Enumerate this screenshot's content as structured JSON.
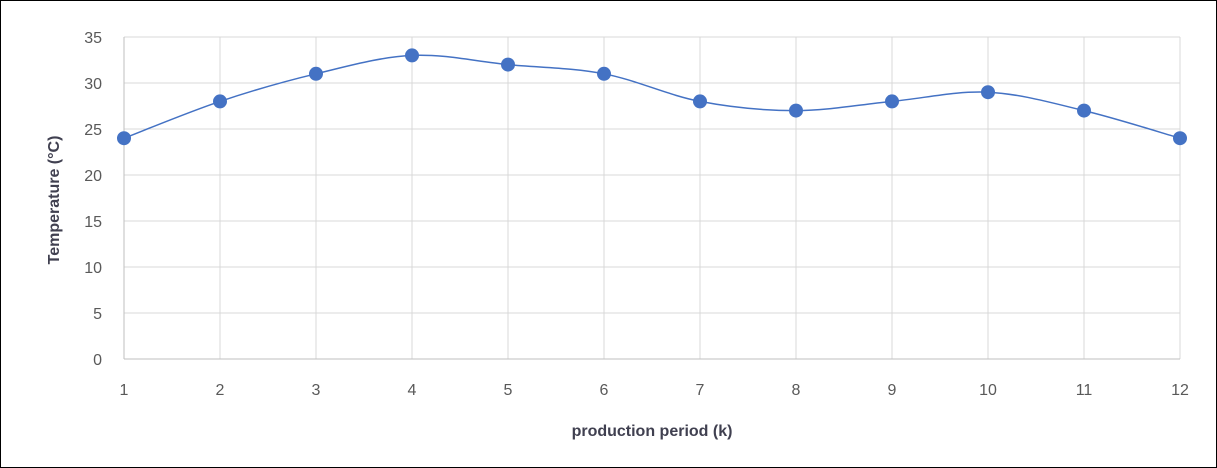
{
  "chart_data": {
    "type": "line",
    "smooth": true,
    "title": "",
    "xlabel": "production period (k)",
    "ylabel": "Temperature (°C)",
    "x": [
      1,
      2,
      3,
      4,
      5,
      6,
      7,
      8,
      9,
      10,
      11,
      12
    ],
    "y": [
      24,
      28,
      31,
      33,
      32,
      31,
      28,
      27,
      28,
      29,
      27,
      24
    ],
    "xlim": [
      1,
      12
    ],
    "ylim": [
      0,
      35
    ],
    "yticks": [
      0,
      5,
      10,
      15,
      20,
      25,
      30,
      35
    ],
    "xticks": [
      1,
      2,
      3,
      4,
      5,
      6,
      7,
      8,
      9,
      10,
      11,
      12
    ],
    "grid": "vertical and horizontal",
    "series_color": "#4472C4",
    "marker_color": "#4472C4"
  }
}
